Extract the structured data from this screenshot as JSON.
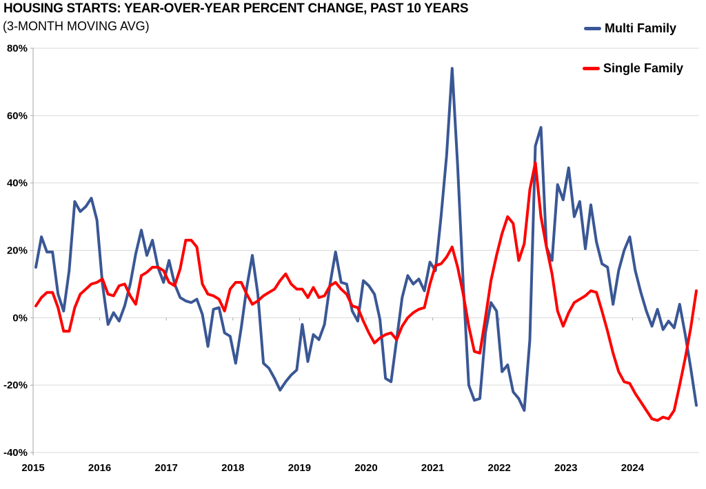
{
  "chart_data": {
    "type": "line",
    "title": "HOUSING STARTS: YEAR-OVER-YEAR PERCENT CHANGE, PAST 10 YEARS",
    "subtitle": "(3-MONTH MOVING AVG)",
    "x_unit": "month",
    "x_start": "2015-01",
    "x_end": "2024-12",
    "x_tick_labels": [
      "2015",
      "2016",
      "2017",
      "2018",
      "2019",
      "2020",
      "2021",
      "2022",
      "2023",
      "2024"
    ],
    "ylim": [
      -40,
      80
    ],
    "y_tick_step": 20,
    "y_tick_labels": [
      "80%",
      "60%",
      "40%",
      "20%",
      "0%",
      "-20%",
      "-40%"
    ],
    "grid": true,
    "legend_position": "top-right",
    "axis_color": "#a6a6a6",
    "grid_color": "#d9d9d9",
    "series": [
      {
        "name": "Multi Family",
        "color": "#3A5795",
        "values": [
          15,
          24,
          19.5,
          19.5,
          7,
          2,
          14,
          34.5,
          31.5,
          33,
          35.5,
          29,
          10,
          -2,
          1.5,
          -1,
          3.5,
          10,
          19,
          26,
          18.5,
          23,
          15,
          10.5,
          17,
          10,
          6,
          5,
          4.5,
          5.5,
          1,
          -8.5,
          2.5,
          3,
          -4.5,
          -5.5,
          -13.5,
          -3,
          9,
          18.5,
          7,
          -13.5,
          -15,
          -18,
          -21.5,
          -19,
          -17,
          -15.5,
          -2,
          -13,
          -5,
          -6.5,
          -2,
          10,
          19.5,
          10.5,
          10,
          2,
          -1,
          11,
          9.5,
          7,
          -0.5,
          -18,
          -19,
          -6.5,
          6,
          12.5,
          10,
          11.5,
          8,
          16.5,
          14,
          30,
          48,
          74,
          45,
          10,
          -20,
          -24.5,
          -24,
          -4.5,
          4.5,
          2,
          -16,
          -14,
          -22,
          -24,
          -27.5,
          -6.5,
          51,
          56.5,
          21,
          17,
          39.5,
          35,
          44.5,
          30,
          34.5,
          20.5,
          33.5,
          22.5,
          16,
          15,
          4,
          14,
          20,
          24,
          14,
          7.5,
          2,
          -2.5,
          2.5,
          -3.5,
          -1,
          -3,
          4,
          -5,
          -15,
          -26
        ]
      },
      {
        "name": "Single Family",
        "color": "#FF0000",
        "values": [
          3.5,
          6,
          7.5,
          7.5,
          3,
          -4,
          -4,
          3,
          7,
          8.5,
          10,
          10.5,
          11.5,
          7,
          6.5,
          9.5,
          10,
          6.5,
          4,
          12.5,
          13.5,
          15,
          15,
          14,
          10.5,
          9.5,
          14.5,
          23,
          23,
          21,
          10,
          7,
          6.5,
          5.5,
          2,
          8.5,
          10.5,
          10.5,
          7,
          4,
          5,
          6.5,
          7.5,
          8.5,
          11,
          13,
          10,
          8.5,
          8.5,
          6,
          9,
          6,
          6.5,
          9.5,
          10.5,
          8.5,
          7,
          3.5,
          3,
          -1,
          -4.5,
          -7.5,
          -6,
          -5,
          -4.5,
          -6.5,
          -2.5,
          0,
          1.5,
          2.5,
          3,
          10,
          15.5,
          16,
          18,
          21,
          15,
          7,
          -2.5,
          -10,
          -10.5,
          0,
          11,
          18.5,
          25,
          30,
          28,
          17,
          22,
          38,
          46,
          30,
          21,
          13,
          2,
          -2.5,
          1.5,
          4.5,
          5.5,
          6.5,
          8,
          7.5,
          2,
          -4,
          -10.5,
          -16,
          -19,
          -19.5,
          -22.5,
          -25,
          -27.5,
          -30,
          -30.5,
          -29.5,
          -30,
          -27.5,
          -20,
          -12,
          -3,
          8
        ]
      }
    ]
  }
}
